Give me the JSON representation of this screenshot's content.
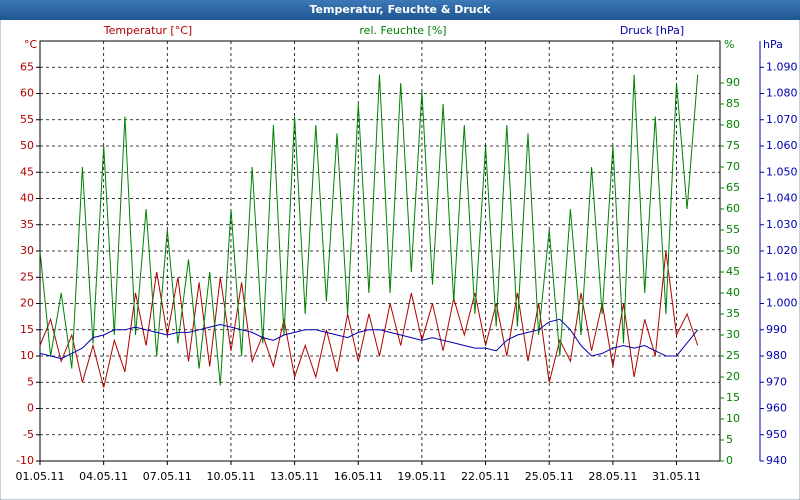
{
  "chart_data": {
    "type": "line",
    "title": "Temperatur, Feuchte & Druck",
    "y_unit": "°C",
    "y2_unit": "%",
    "y3_unit": "hPa",
    "x": [
      0,
      0.5,
      1,
      1.5,
      2,
      2.5,
      3,
      3.5,
      4,
      4.5,
      5,
      5.5,
      6,
      6.5,
      7,
      7.5,
      8,
      8.5,
      9,
      9.5,
      10,
      10.5,
      11,
      11.5,
      12,
      12.5,
      13,
      13.5,
      14,
      14.5,
      15,
      15.5,
      16,
      16.5,
      17,
      17.5,
      18,
      18.5,
      19,
      19.5,
      20,
      20.5,
      21,
      21.5,
      22,
      22.5,
      23,
      23.5,
      24,
      24.5,
      25,
      25.5,
      26,
      26.5,
      27,
      27.5,
      28,
      28.5,
      29,
      29.5,
      30,
      30.5,
      31
    ],
    "xlim": [
      0,
      32.05
    ],
    "xticks": [
      {
        "value": 0,
        "label": "01.05.11"
      },
      {
        "value": 3,
        "label": "04.05.11"
      },
      {
        "value": 6,
        "label": "07.05.11"
      },
      {
        "value": 9,
        "label": "10.05.11"
      },
      {
        "value": 12,
        "label": "13.05.11"
      },
      {
        "value": 15,
        "label": "16.05.11"
      },
      {
        "value": 18,
        "label": "19.05.11"
      },
      {
        "value": 21,
        "label": "22.05.11"
      },
      {
        "value": 24,
        "label": "25.05.11"
      },
      {
        "value": 27,
        "label": "28.05.11"
      },
      {
        "value": 30,
        "label": "31.05.11"
      }
    ],
    "ylim": [
      -10,
      70
    ],
    "yticks": [
      -10,
      -5,
      0,
      5,
      10,
      15,
      20,
      25,
      30,
      35,
      40,
      45,
      50,
      55,
      60,
      65
    ],
    "y2lim": [
      0,
      100
    ],
    "y2ticks": [
      0,
      5,
      10,
      15,
      20,
      25,
      30,
      35,
      40,
      45,
      50,
      55,
      60,
      65,
      70,
      75,
      80,
      85,
      90
    ],
    "y3lim": [
      940,
      1100
    ],
    "y3ticks": [
      {
        "value": 940,
        "label": "940"
      },
      {
        "value": 950,
        "label": "950"
      },
      {
        "value": 960,
        "label": "960"
      },
      {
        "value": 970,
        "label": "970"
      },
      {
        "value": 980,
        "label": "980"
      },
      {
        "value": 990,
        "label": "990"
      },
      {
        "value": 1000,
        "label": "1.000"
      },
      {
        "value": 1010,
        "label": "1.010"
      },
      {
        "value": 1020,
        "label": "1.020"
      },
      {
        "value": 1030,
        "label": "1.030"
      },
      {
        "value": 1040,
        "label": "1.040"
      },
      {
        "value": 1050,
        "label": "1.050"
      },
      {
        "value": 1060,
        "label": "1.060"
      },
      {
        "value": 1070,
        "label": "1.070"
      },
      {
        "value": 1080,
        "label": "1.080"
      },
      {
        "value": 1090,
        "label": "1.090"
      }
    ],
    "grid": true,
    "series": [
      {
        "name": "Temperatur [°C]",
        "color": "#b00000",
        "axis": "y",
        "values": [
          12,
          17,
          9,
          14,
          5,
          12,
          4,
          13,
          7,
          22,
          12,
          26,
          14,
          25,
          9,
          24,
          8,
          25,
          11,
          24,
          9,
          14,
          8,
          17,
          6,
          12,
          6,
          15,
          7,
          18,
          9,
          18,
          10,
          20,
          12,
          22,
          13,
          20,
          11,
          21,
          14,
          22,
          12,
          20,
          10,
          22,
          9,
          20,
          5,
          13,
          9,
          22,
          11,
          20,
          8,
          20,
          6,
          17,
          10,
          30,
          14,
          18,
          12
        ]
      },
      {
        "name": "rel. Feuchte [%]",
        "color": "#008000",
        "axis": "y2",
        "values": [
          50,
          25,
          40,
          22,
          70,
          28,
          75,
          30,
          82,
          30,
          60,
          25,
          55,
          28,
          48,
          22,
          45,
          18,
          60,
          25,
          70,
          28,
          80,
          30,
          82,
          35,
          80,
          38,
          78,
          35,
          85,
          40,
          92,
          40,
          90,
          45,
          88,
          42,
          85,
          38,
          80,
          35,
          75,
          32,
          80,
          32,
          78,
          30,
          55,
          25,
          60,
          30,
          70,
          35,
          75,
          28,
          92,
          40,
          82,
          35,
          90,
          60,
          92
        ]
      },
      {
        "name": "Druck [hPa]",
        "color": "#0000b0",
        "axis": "y3",
        "values": [
          981,
          980,
          979,
          981,
          983,
          987,
          988,
          990,
          990,
          991,
          990,
          989,
          988,
          989,
          989,
          990,
          991,
          992,
          991,
          990,
          989,
          987,
          986,
          988,
          989,
          990,
          990,
          989,
          988,
          987,
          989,
          990,
          990,
          989,
          988,
          987,
          986,
          987,
          986,
          985,
          984,
          983,
          983,
          982,
          986,
          988,
          989,
          990,
          993,
          994,
          990,
          984,
          980,
          981,
          983,
          984,
          983,
          984,
          982,
          980,
          980,
          985,
          990
        ]
      }
    ]
  }
}
